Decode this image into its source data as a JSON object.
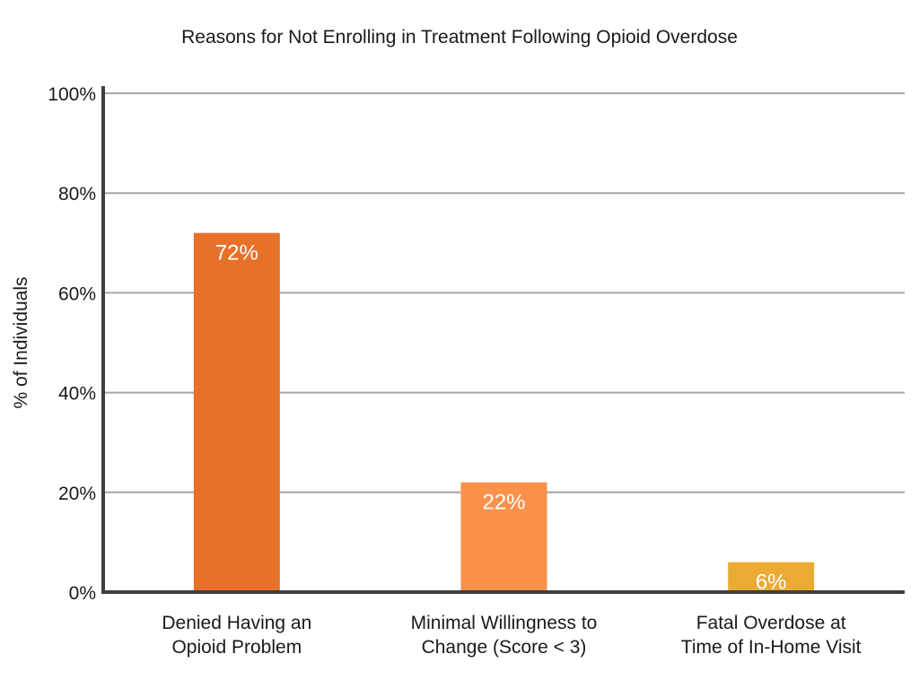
{
  "chart_data": {
    "type": "bar",
    "title": "Reasons for Not Enrolling in Treatment Following Opioid Overdose",
    "xlabel": "",
    "ylabel": "% of Individuals",
    "ylim": [
      0,
      100
    ],
    "yticks": [
      0,
      20,
      40,
      60,
      80,
      100
    ],
    "ytick_labels": [
      "0%",
      "20%",
      "40%",
      "60%",
      "80%",
      "100%"
    ],
    "grid": true,
    "categories": [
      [
        "Denied Having an",
        "Opioid Problem"
      ],
      [
        "Minimal Willingness to",
        "Change (Score < 3)"
      ],
      [
        "Fatal Overdose at",
        "Time of In-Home Visit"
      ]
    ],
    "values": [
      72,
      22,
      6
    ],
    "value_labels": [
      "72%",
      "22%",
      "6%"
    ],
    "colors": [
      "#E8712A",
      "#FB914B",
      "#EAAA34"
    ],
    "grid_color": "#A6A6A6",
    "axis_color": "#3A3F44"
  }
}
